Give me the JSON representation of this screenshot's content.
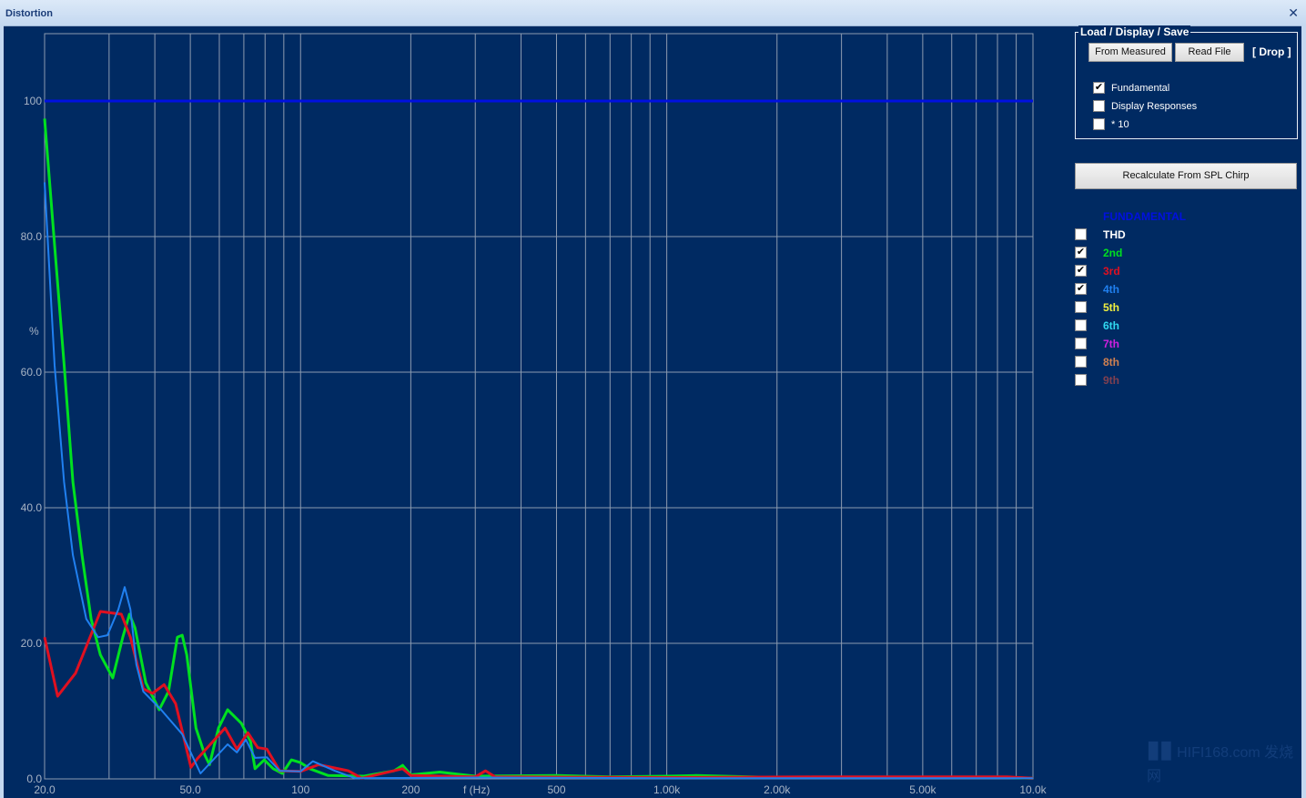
{
  "window": {
    "title": "Distortion",
    "close_icon": "close-icon"
  },
  "panel": {
    "group_title": "Load / Display / Save",
    "from_measured": "From Measured",
    "read_file": "Read File",
    "drop": "[ Drop ]",
    "options": [
      {
        "label": "Fundamental",
        "checked": true
      },
      {
        "label": "Display Responses",
        "checked": false
      },
      {
        "label": "* 10",
        "checked": false
      }
    ],
    "recalculate": "Recalculate From SPL Chirp",
    "fundamental_label": "FUNDAMENTAL",
    "fundamental_color": "#0010e0",
    "harmonics": [
      {
        "label": "THD",
        "checked": false,
        "color": "#ffffff"
      },
      {
        "label": "2nd",
        "checked": true,
        "color": "#00e020"
      },
      {
        "label": "3rd",
        "checked": true,
        "color": "#e01020"
      },
      {
        "label": "4th",
        "checked": true,
        "color": "#2080f0"
      },
      {
        "label": "5th",
        "checked": false,
        "color": "#f0f040"
      },
      {
        "label": "6th",
        "checked": false,
        "color": "#30d8f0"
      },
      {
        "label": "7th",
        "checked": false,
        "color": "#d020e0"
      },
      {
        "label": "8th",
        "checked": false,
        "color": "#d08050"
      },
      {
        "label": "9th",
        "checked": false,
        "color": "#804050"
      }
    ]
  },
  "watermark": "HIFI168.com 发烧网",
  "chart_data": {
    "type": "line",
    "xlabel": "f (Hz)",
    "ylabel": "%",
    "xscale": "log",
    "xlim": [
      20,
      10000
    ],
    "ylim": [
      0,
      110
    ],
    "grid": true,
    "xticks": [
      {
        "v": 20,
        "l": "20.0"
      },
      {
        "v": 50,
        "l": "50.0"
      },
      {
        "v": 100,
        "l": "100"
      },
      {
        "v": 200,
        "l": "200"
      },
      {
        "v": 500,
        "l": "500"
      },
      {
        "v": 1000,
        "l": "1.00k"
      },
      {
        "v": 2000,
        "l": "2.00k"
      },
      {
        "v": 5000,
        "l": "5.00k"
      },
      {
        "v": 10000,
        "l": "10.0k"
      }
    ],
    "yticks": [
      {
        "v": 0,
        "l": "0.0"
      },
      {
        "v": 20,
        "l": "20.0"
      },
      {
        "v": 40,
        "l": "40.0"
      },
      {
        "v": 60,
        "l": "60.0"
      },
      {
        "v": 80,
        "l": "80.0"
      },
      {
        "v": 100,
        "l": "100"
      }
    ],
    "series": [
      {
        "name": "FUNDAMENTAL",
        "color": "#0010e0",
        "width": 3,
        "points": [
          [
            20,
            100
          ],
          [
            10000,
            100
          ]
        ]
      },
      {
        "name": "2nd",
        "color": "#00e020",
        "width": 3,
        "points": [
          [
            20,
            97.4
          ],
          [
            21.3,
            78.7
          ],
          [
            22.6,
            61.2
          ],
          [
            23.9,
            43.8
          ],
          [
            25.3,
            33
          ],
          [
            26.8,
            23.6
          ],
          [
            28.4,
            18.3
          ],
          [
            30.7,
            14.9
          ],
          [
            32.7,
            20.9
          ],
          [
            34.1,
            24.3
          ],
          [
            35.3,
            22.3
          ],
          [
            37.8,
            14.2
          ],
          [
            41.1,
            10.2
          ],
          [
            43.6,
            12.9
          ],
          [
            46.1,
            20.9
          ],
          [
            47.5,
            21.2
          ],
          [
            48.9,
            18.3
          ],
          [
            51.8,
            7.5
          ],
          [
            54.8,
            3.5
          ],
          [
            56.4,
            2.1
          ],
          [
            59.7,
            7.5
          ],
          [
            63.2,
            10.2
          ],
          [
            68.9,
            8.2
          ],
          [
            73,
            5.5
          ],
          [
            75.1,
            1.5
          ],
          [
            79.6,
            2.8
          ],
          [
            84.2,
            1.5
          ],
          [
            89.2,
            0.8
          ],
          [
            94.4,
            2.8
          ],
          [
            100,
            2.4
          ],
          [
            106,
            1.5
          ],
          [
            119,
            0.5
          ],
          [
            149,
            0.4
          ],
          [
            180,
            1.2
          ],
          [
            190,
            2
          ],
          [
            200,
            0.6
          ],
          [
            240,
            1
          ],
          [
            300,
            0.4
          ],
          [
            500,
            0.5
          ],
          [
            700,
            0.3
          ],
          [
            1000,
            0.4
          ],
          [
            1200,
            0.5
          ],
          [
            2000,
            0.2
          ],
          [
            5000,
            0.2
          ],
          [
            8500,
            0.2
          ],
          [
            10000,
            0.1
          ]
        ]
      },
      {
        "name": "3rd",
        "color": "#e01020",
        "width": 3,
        "points": [
          [
            20,
            20.9
          ],
          [
            21.7,
            12.2
          ],
          [
            24.3,
            15.6
          ],
          [
            28.4,
            24.7
          ],
          [
            32.4,
            24.3
          ],
          [
            34.3,
            20.9
          ],
          [
            37.2,
            13.3
          ],
          [
            39.4,
            12.6
          ],
          [
            42.4,
            13.9
          ],
          [
            45.6,
            11.1
          ],
          [
            50.2,
            1.7
          ],
          [
            52.3,
            3
          ],
          [
            62.2,
            7.5
          ],
          [
            67,
            4.4
          ],
          [
            71.8,
            6.8
          ],
          [
            76.4,
            4.6
          ],
          [
            80.9,
            4.4
          ],
          [
            87.7,
            1.2
          ],
          [
            100,
            1.1
          ],
          [
            112,
            2.1
          ],
          [
            135,
            1.2
          ],
          [
            147,
            0.1
          ],
          [
            190,
            1.5
          ],
          [
            200,
            0.5
          ],
          [
            300,
            0.3
          ],
          [
            320,
            1.2
          ],
          [
            340,
            0.3
          ],
          [
            1000,
            0.2
          ],
          [
            2500,
            0.3
          ],
          [
            5000,
            0.3
          ],
          [
            8500,
            0.3
          ],
          [
            10000,
            0.1
          ]
        ]
      },
      {
        "name": "4th",
        "color": "#2080f0",
        "width": 2,
        "points": [
          [
            20,
            88
          ],
          [
            21.3,
            61
          ],
          [
            22.6,
            43.8
          ],
          [
            23.9,
            33
          ],
          [
            26,
            23.6
          ],
          [
            28,
            20.9
          ],
          [
            29.7,
            21.2
          ],
          [
            31.8,
            25
          ],
          [
            33.1,
            28.3
          ],
          [
            34.3,
            25
          ],
          [
            35.6,
            16.9
          ],
          [
            37.2,
            12.9
          ],
          [
            41.6,
            10.2
          ],
          [
            47.5,
            6.6
          ],
          [
            53.3,
            0.8
          ],
          [
            63.2,
            5.1
          ],
          [
            67,
            3.9
          ],
          [
            70.9,
            5.8
          ],
          [
            75.1,
            3.1
          ],
          [
            80.9,
            3.2
          ],
          [
            87.7,
            1.2
          ],
          [
            100,
            1.1
          ],
          [
            108,
            2.6
          ],
          [
            124,
            1.2
          ],
          [
            141,
            0.1
          ],
          [
            300,
            0.2
          ],
          [
            1000,
            0.1
          ],
          [
            10000,
            0.1
          ]
        ]
      }
    ]
  }
}
